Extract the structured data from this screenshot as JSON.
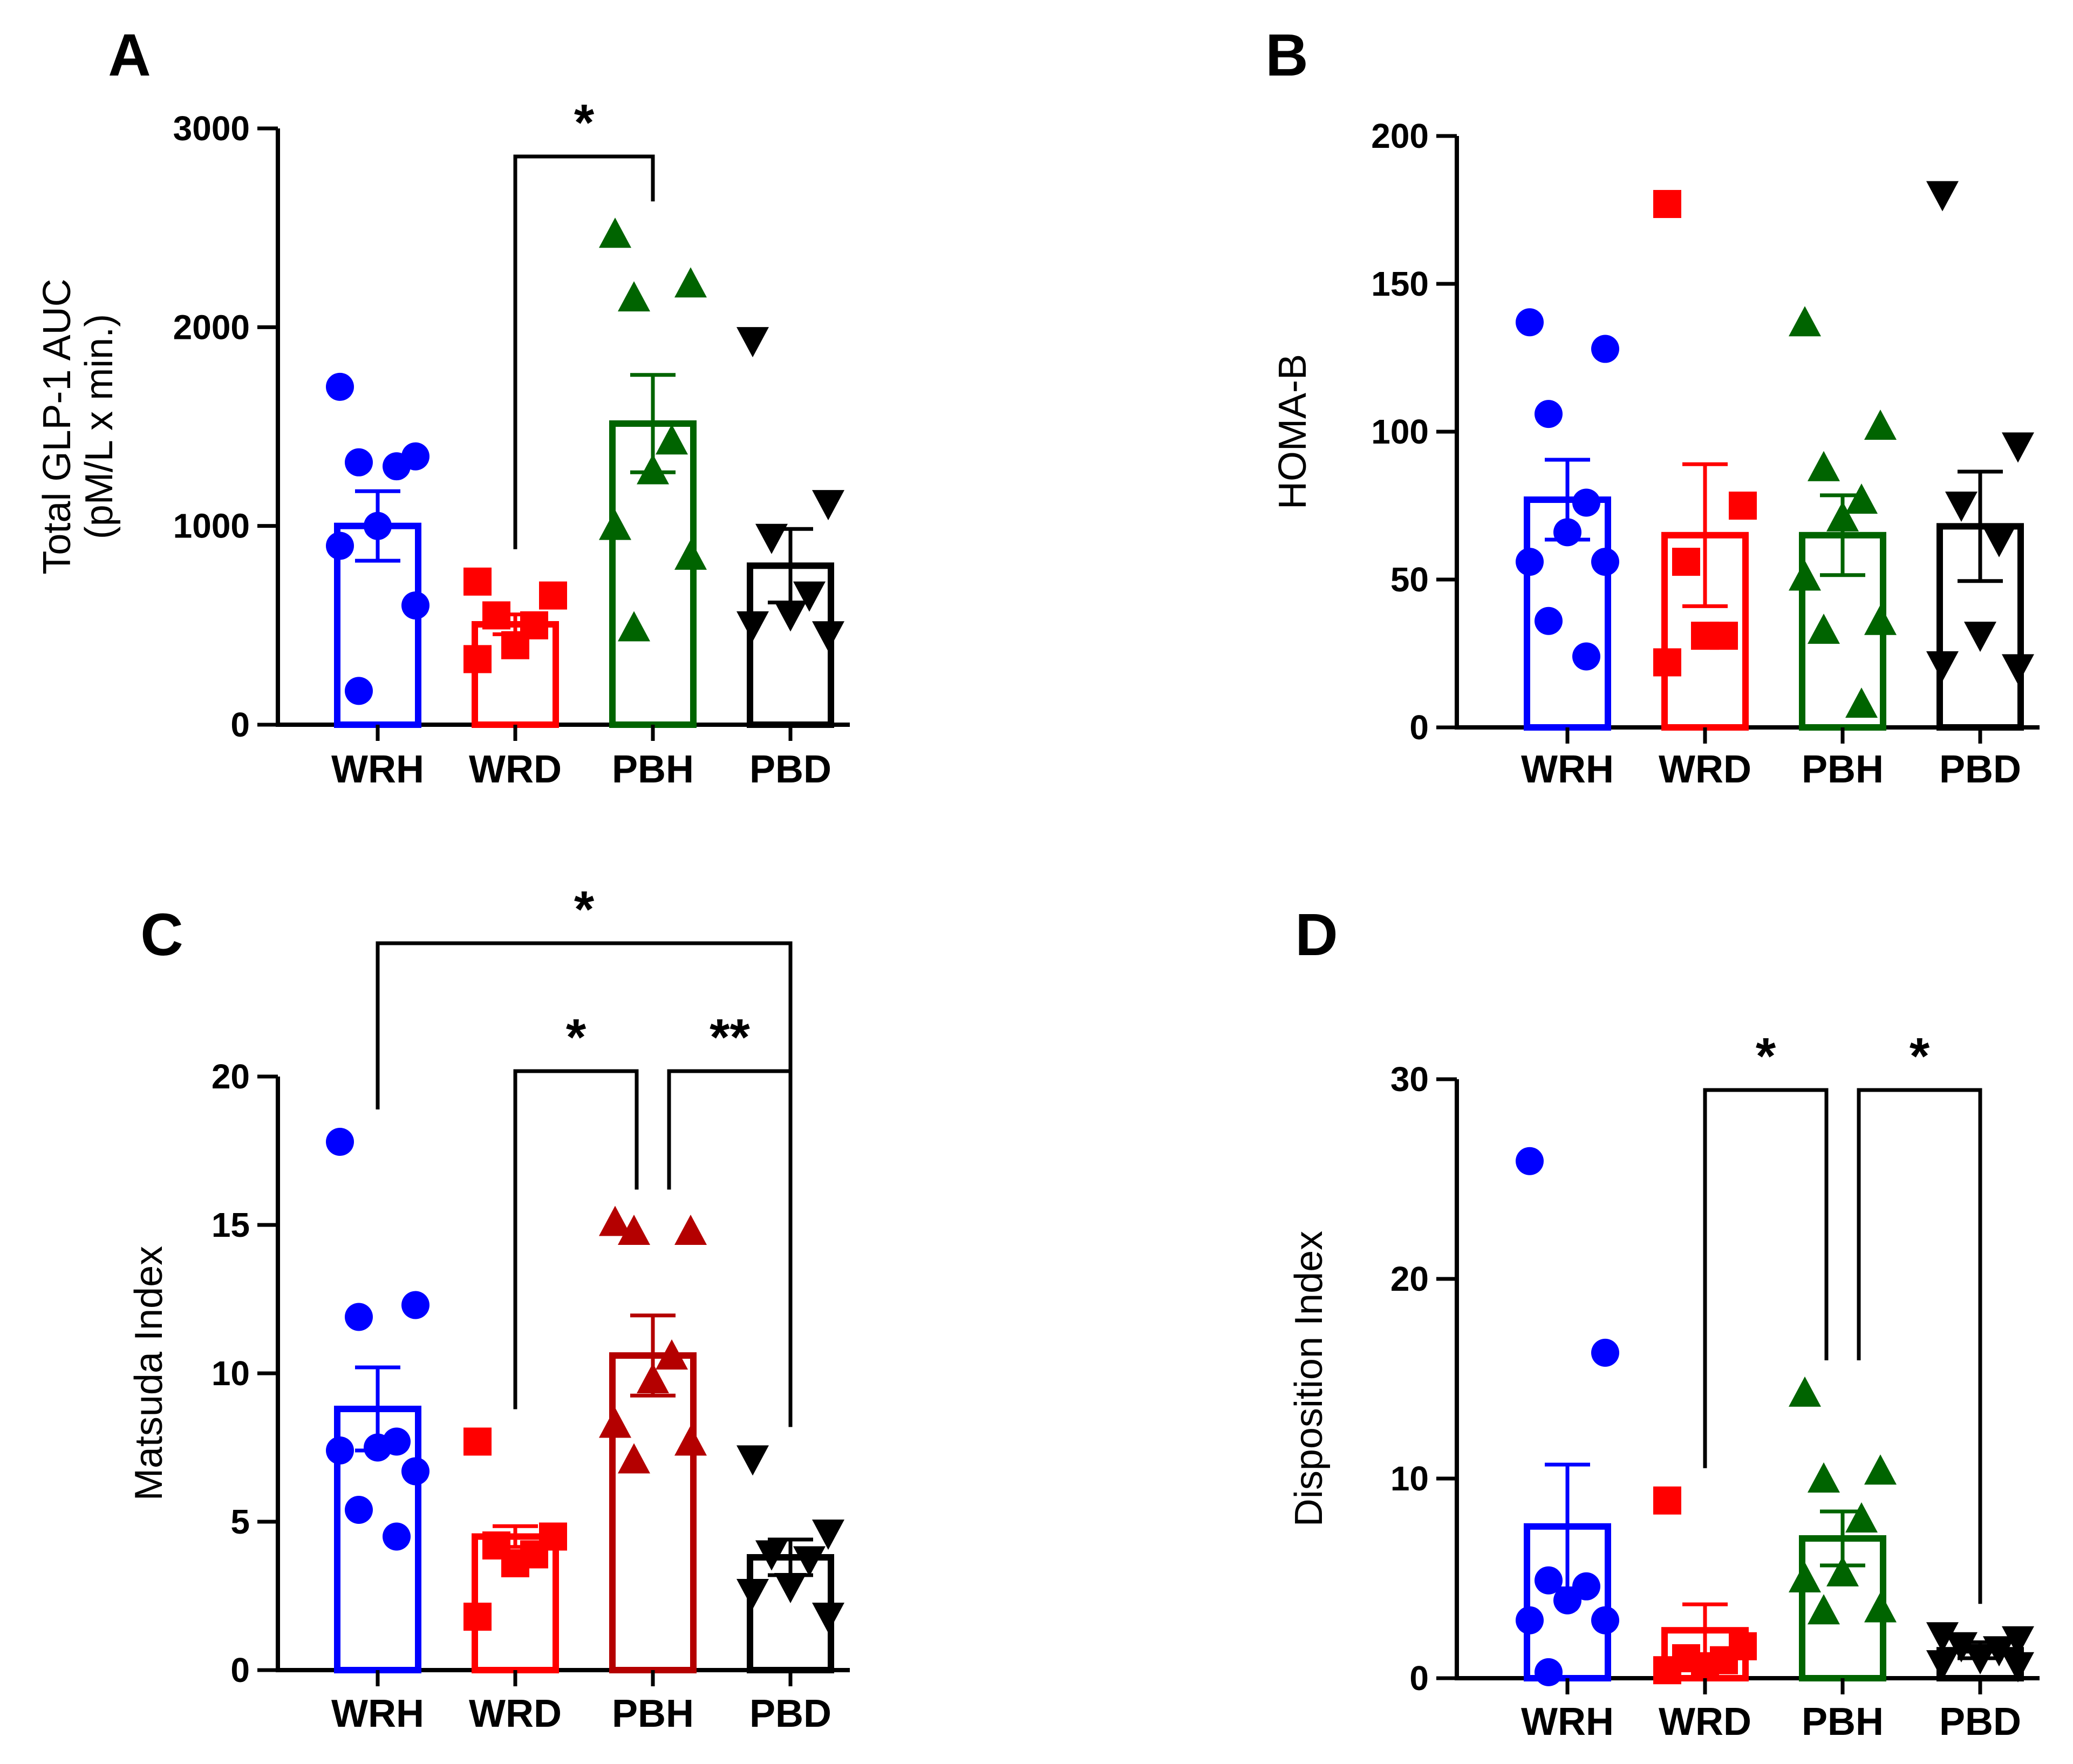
{
  "chart_data": [
    {
      "panel": "A",
      "type": "bar",
      "categories": [
        "WRH",
        "WRD",
        "PBH",
        "PBD"
      ],
      "ylabel_lines": [
        "Total GLP-1 AUC",
        "(pM/L x min.)"
      ],
      "ylim": [
        0,
        3000
      ],
      "yticks": [
        0,
        1000,
        2000,
        3000
      ],
      "colors": [
        "#0000ff",
        "#ff0000",
        "#006400",
        "#000000"
      ],
      "markers": [
        "circle",
        "square",
        "triangle",
        "triangle-down"
      ],
      "values": [
        1000,
        505,
        1515,
        800
      ],
      "sem": [
        175,
        50,
        245,
        185
      ],
      "points": [
        [
          1700,
          1350,
          1320,
          1300,
          1000,
          900,
          600,
          170
        ],
        [
          720,
          650,
          550,
          500,
          400,
          330
        ],
        [
          2470,
          2220,
          2150,
          1430,
          1280,
          1000,
          850,
          490
        ],
        [
          1930,
          1110,
          940,
          650,
          550,
          500,
          450
        ]
      ],
      "significance": [
        {
          "from": 1,
          "to": 2,
          "label": "*"
        }
      ]
    },
    {
      "panel": "B",
      "type": "bar",
      "categories": [
        "WRH",
        "WRD",
        "PBH",
        "PBD"
      ],
      "ylabel_lines": [
        "HOMA-B"
      ],
      "ylim": [
        0,
        200
      ],
      "yticks": [
        0,
        50,
        100,
        150,
        200
      ],
      "colors": [
        "#0000ff",
        "#ff0000",
        "#006400",
        "#000000"
      ],
      "markers": [
        "circle",
        "square",
        "triangle",
        "triangle-down"
      ],
      "values": [
        77,
        65,
        65,
        68
      ],
      "sem": [
        13.5,
        24,
        13.5,
        18.5
      ],
      "points": [
        [
          137,
          128,
          106,
          76,
          66,
          56,
          56,
          36,
          24
        ],
        [
          177,
          75,
          56,
          31,
          31,
          22
        ],
        [
          137,
          102,
          88,
          77,
          71,
          51,
          36,
          33,
          8
        ],
        [
          180,
          95,
          75,
          63,
          31,
          21,
          20
        ]
      ],
      "significance": []
    },
    {
      "panel": "C",
      "type": "bar",
      "categories": [
        "WRH",
        "WRD",
        "PBH",
        "PBD"
      ],
      "ylabel_lines": [
        "Matsuda Index"
      ],
      "ylim": [
        0,
        20
      ],
      "yticks": [
        0,
        5,
        10,
        15,
        20
      ],
      "colors": [
        "#0000ff",
        "#ff0000",
        "#b40000",
        "#000000"
      ],
      "markers": [
        "circle",
        "square",
        "triangle",
        "triangle-down"
      ],
      "values": [
        8.8,
        4.5,
        10.6,
        3.8
      ],
      "sem": [
        1.4,
        0.35,
        1.35,
        0.6
      ],
      "points": [
        [
          17.8,
          12.3,
          11.9,
          7.7,
          7.5,
          7.4,
          6.7,
          5.4,
          4.5
        ],
        [
          7.7,
          4.5,
          4.2,
          3.9,
          3.6,
          1.8
        ],
        [
          15.1,
          14.8,
          14.8,
          10.6,
          9.8,
          8.3,
          7.7,
          7.1
        ],
        [
          7.1,
          4.6,
          3.9,
          3.7,
          2.8,
          2.6,
          1.8
        ]
      ],
      "significance": [
        {
          "from": 1,
          "to": 2,
          "label": "*"
        },
        {
          "from": 2,
          "to": 3,
          "label": "**"
        },
        {
          "from": 0,
          "to": 3,
          "label": "*"
        }
      ]
    },
    {
      "panel": "D",
      "type": "bar",
      "categories": [
        "WRH",
        "WRD",
        "PBH",
        "PBD"
      ],
      "ylabel_lines": [
        "Disposition Index"
      ],
      "ylim": [
        0,
        30
      ],
      "yticks": [
        0,
        10,
        20,
        30
      ],
      "colors": [
        "#0000ff",
        "#ff0000",
        "#006400",
        "#000000"
      ],
      "markers": [
        "circle",
        "square",
        "triangle",
        "triangle-down"
      ],
      "values": [
        7.6,
        2.4,
        7.0,
        1.4
      ],
      "sem": [
        3.1,
        1.3,
        1.35,
        0.4
      ],
      "points": [
        [
          25.9,
          16.3,
          4.9,
          4.6,
          3.9,
          2.9,
          2.9,
          0.3
        ],
        [
          8.9,
          1.6,
          1.0,
          0.9,
          0.6,
          0.4
        ],
        [
          14.3,
          10.4,
          10.0,
          8.0,
          5.3,
          5.0,
          3.5,
          3.4
        ],
        [
          2.1,
          1.9,
          1.6,
          1.4,
          1.0,
          0.7,
          0.6
        ]
      ],
      "significance": [
        {
          "from": 1,
          "to": 2,
          "label": "*"
        },
        {
          "from": 2,
          "to": 3,
          "label": "*"
        }
      ]
    }
  ]
}
